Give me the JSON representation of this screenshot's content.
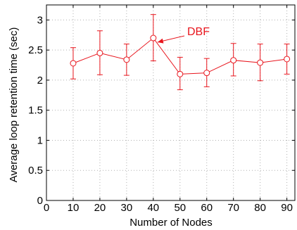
{
  "chart_data": {
    "type": "line",
    "xlabel": "Number of Nodes",
    "ylabel": "Average loop retention time (sec)",
    "xlim": [
      0,
      93
    ],
    "ylim": [
      0,
      3.25
    ],
    "xticks": [
      0,
      10,
      20,
      30,
      40,
      50,
      60,
      70,
      80,
      90
    ],
    "yticks": [
      0,
      0.5,
      1,
      1.5,
      2,
      2.5,
      3
    ],
    "xtick_labels": [
      "0",
      "10",
      "20",
      "30",
      "40",
      "50",
      "60",
      "70",
      "80",
      "90"
    ],
    "ytick_labels": [
      "0",
      "0.5",
      "1",
      "1.5",
      "2",
      "2.5",
      "3"
    ],
    "grid": true,
    "series": [
      {
        "name": "DBF",
        "color": "#e8141c",
        "marker": "circle-open",
        "x": [
          10,
          20,
          30,
          40,
          50,
          60,
          70,
          80,
          90
        ],
        "y": [
          2.28,
          2.45,
          2.34,
          2.7,
          2.1,
          2.12,
          2.33,
          2.29,
          2.35
        ],
        "err_low": [
          2.02,
          2.09,
          2.08,
          2.32,
          1.84,
          1.89,
          2.07,
          1.99,
          2.1
        ],
        "err_high": [
          2.54,
          2.82,
          2.6,
          3.09,
          2.38,
          2.36,
          2.61,
          2.6,
          2.6
        ]
      }
    ],
    "annotations": [
      {
        "text": "DBF",
        "points_to_x": 40,
        "points_to_y": 2.7
      }
    ]
  }
}
